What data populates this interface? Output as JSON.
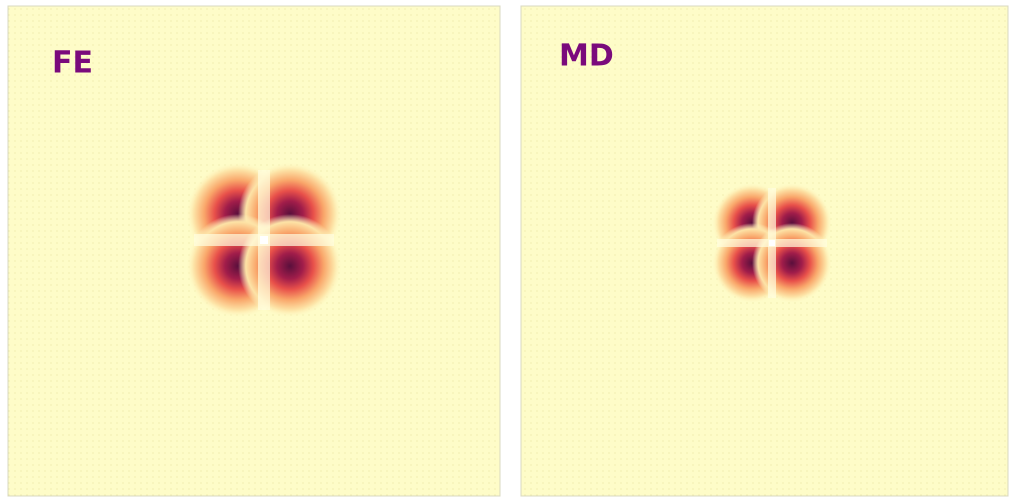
{
  "panels": [
    {
      "label": "FE"
    },
    {
      "label": "MD"
    }
  ]
}
